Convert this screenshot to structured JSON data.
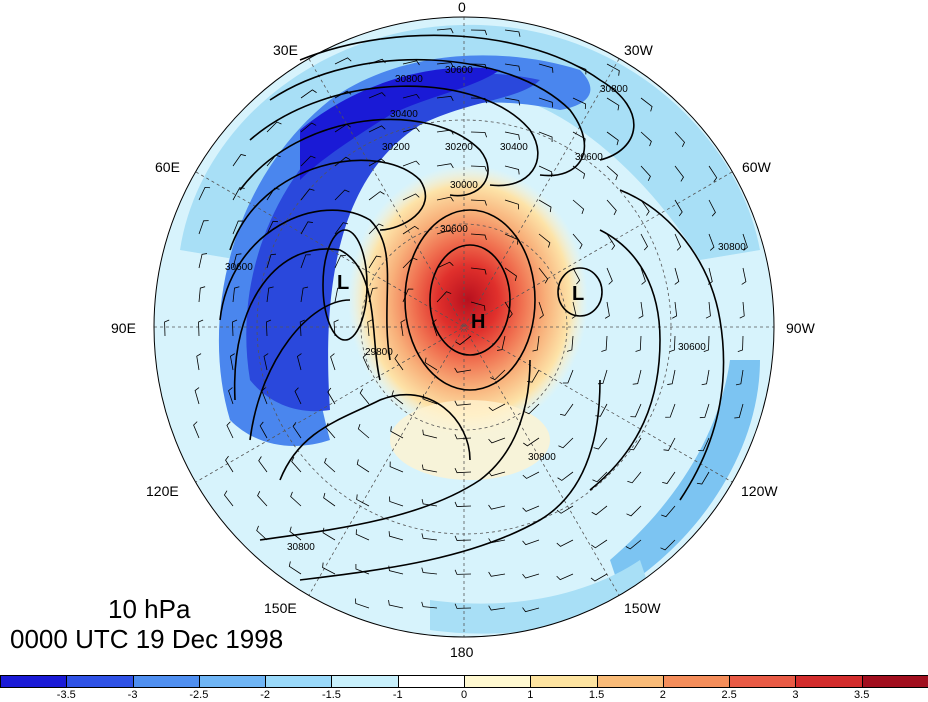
{
  "map": {
    "level": "10 hPa",
    "datetime": "0000 UTC 19 Dec 1998",
    "longitude_labels": {
      "n": "0",
      "s": "180",
      "ne30": "30E",
      "nw30": "30W",
      "e60": "60E",
      "w60": "60W",
      "e90": "90E",
      "w90": "90W",
      "e120": "120E",
      "w120": "120W",
      "e150": "150E",
      "w150": "150W"
    },
    "pressure_centers": {
      "high": "H",
      "low1": "L",
      "low2": "L"
    },
    "contour_labels": [
      "30800",
      "30600",
      "30400",
      "30200",
      "30000",
      "30600",
      "29800",
      "30600",
      "30800",
      "30800",
      "30800",
      "30600",
      "30800",
      "30600",
      "30400",
      "30200"
    ]
  },
  "colorbar": {
    "colors": [
      "#1a1ad6",
      "#2f52e6",
      "#4f8ff0",
      "#6fb5f5",
      "#9ad9fa",
      "#c8f0fc",
      "#ffffff",
      "#fff8d0",
      "#fde3a0",
      "#f9bb78",
      "#f48d5a",
      "#e85a45",
      "#d22c2c",
      "#a10e1e"
    ],
    "labels": [
      "-3.5",
      "-3",
      "-2.5",
      "-2",
      "-1.5",
      "-1",
      "0",
      "1",
      "1.5",
      "2",
      "2.5",
      "3",
      "3.5"
    ]
  }
}
